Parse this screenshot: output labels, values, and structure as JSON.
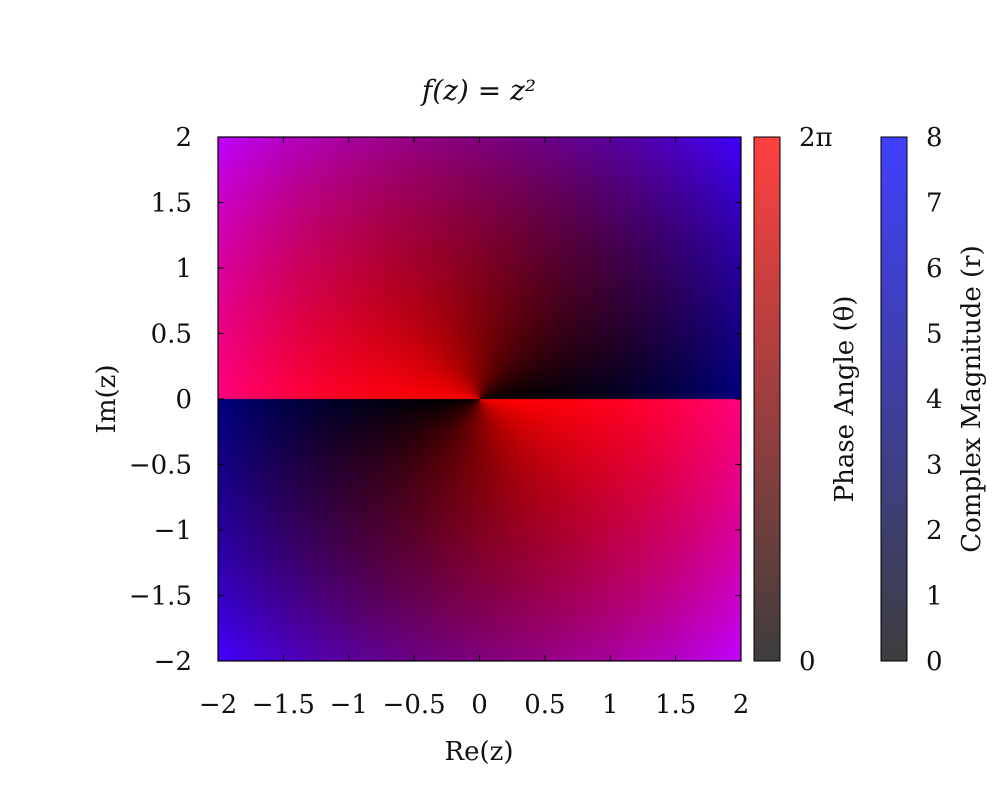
{
  "chart_data": {
    "type": "heatmap",
    "title": "f(z) = z²",
    "function": "z^2",
    "xlabel": "Re(z)",
    "ylabel": "Im(z)",
    "xlim": [
      -2,
      2
    ],
    "ylim": [
      -2,
      2
    ],
    "x_ticks": [
      -2,
      -1.5,
      -1,
      -0.5,
      0,
      0.5,
      1,
      1.5,
      2
    ],
    "y_ticks": [
      -2,
      -1.5,
      -1,
      -0.5,
      0,
      0.5,
      1,
      1.5,
      2
    ],
    "x_tick_labels": [
      "−2",
      "−1.5",
      "−1",
      "−0.5",
      "0",
      "0.5",
      "1",
      "1.5",
      "2"
    ],
    "y_tick_labels": [
      "−2",
      "−1.5",
      "−1",
      "−0.5",
      "0",
      "0.5",
      "1",
      "1.5",
      "2"
    ],
    "grid": false,
    "colorbars": [
      {
        "label": "Phase Angle (θ)",
        "range": [
          0,
          6.2832
        ],
        "tick_labels": [
          "0",
          "2π"
        ],
        "color_low": "#3d3d3d",
        "color_high": "#ff4040"
      },
      {
        "label": "Complex Magnitude (r)",
        "range": [
          0,
          8
        ],
        "ticks": [
          0,
          1,
          2,
          3,
          4,
          5,
          6,
          7,
          8
        ],
        "tick_labels": [
          "0",
          "1",
          "2",
          "3",
          "4",
          "5",
          "6",
          "7",
          "8"
        ],
        "color_low": "#3d3d3d",
        "color_high": "#4040ff"
      }
    ],
    "colors": {
      "phase": "#ff0000",
      "magnitude": "#0000ff",
      "frame": "#000000"
    }
  }
}
